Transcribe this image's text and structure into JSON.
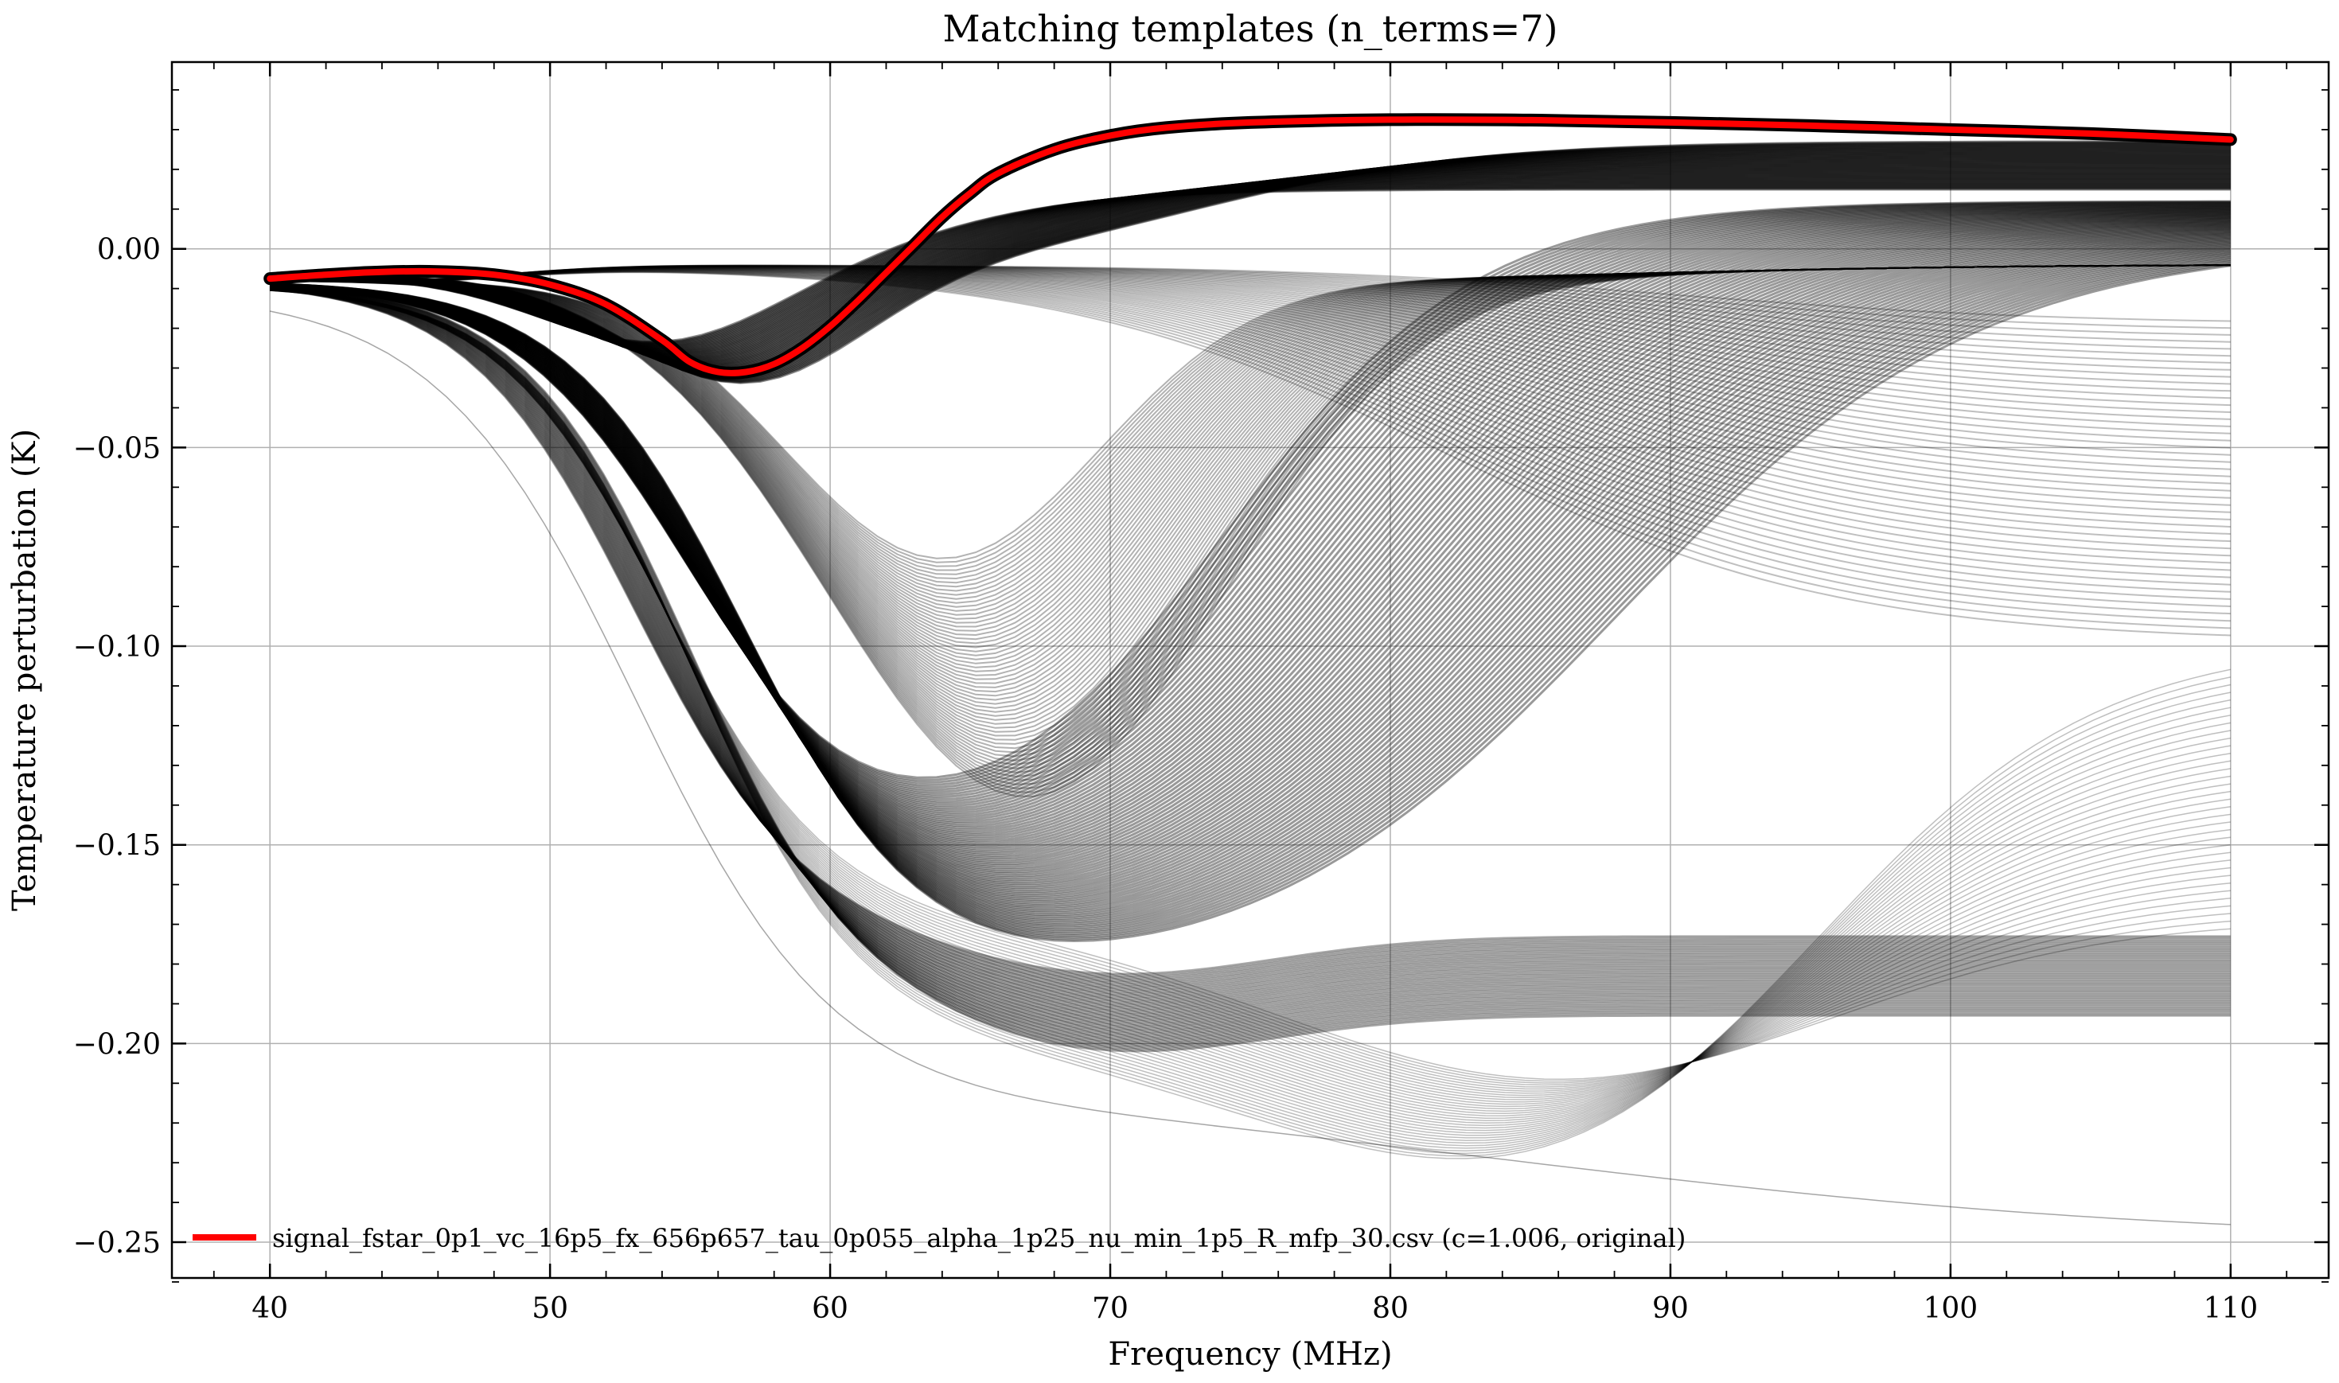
{
  "chart_data": {
    "type": "line",
    "title": "Matching templates (n_terms=7)",
    "xlabel": "Frequency (MHz)",
    "ylabel": "Temperature perturbation (K)",
    "xlim": [
      36.5,
      113.5
    ],
    "ylim": [
      -0.259,
      0.047
    ],
    "x_ticks": [
      40,
      50,
      60,
      70,
      80,
      90,
      100,
      110
    ],
    "x_tick_labels": [
      "40",
      "50",
      "60",
      "70",
      "80",
      "90",
      "100",
      "110"
    ],
    "y_ticks": [
      0.0,
      -0.05,
      -0.1,
      -0.15,
      -0.2,
      -0.25
    ],
    "y_tick_labels": [
      "0.00",
      "−0.05",
      "−0.10",
      "−0.15",
      "−0.20",
      "−0.25"
    ],
    "grid": true,
    "legend_position": "lower-left",
    "template_color": "#000000",
    "highlight": {
      "name": "signal_fstar_0p1_vc_16p5_fx_656p657_tau_0p055_alpha_1p25_nu_min_1p5_R_mfp_30.csv (c=1.006, original)",
      "color": "#ff0000",
      "x": [
        40,
        42,
        44,
        46,
        48,
        50,
        52,
        54,
        55,
        56,
        57,
        58,
        59,
        60,
        61,
        62,
        63,
        64,
        65,
        66,
        68,
        70,
        72,
        75,
        80,
        85,
        90,
        95,
        100,
        105,
        110
      ],
      "y": [
        -0.0075,
        -0.0065,
        -0.0058,
        -0.0057,
        -0.0065,
        -0.009,
        -0.014,
        -0.023,
        -0.0285,
        -0.031,
        -0.031,
        -0.029,
        -0.025,
        -0.0195,
        -0.013,
        -0.006,
        0.001,
        0.008,
        0.014,
        0.019,
        0.025,
        0.0285,
        0.0305,
        0.0318,
        0.0325,
        0.0324,
        0.0318,
        0.031,
        0.03,
        0.029,
        0.0275
      ]
    }
  }
}
